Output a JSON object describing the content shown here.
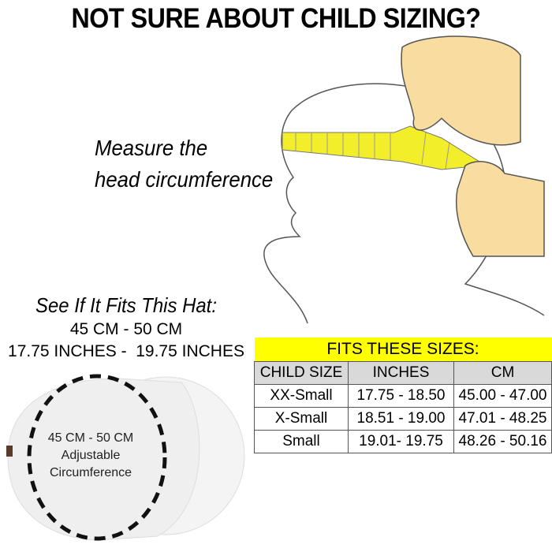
{
  "title": "NOT SURE ABOUT CHILD SIZING?",
  "instruction": [
    "Measure the",
    "head circumference"
  ],
  "fit_heading": "See If It Fits This Hat:",
  "cm_range": "45 CM - 50 CM",
  "inch_range": "17.75 INCHES -  19.75 INCHES",
  "cap_label": [
    "45 CM - 50 CM",
    "Adjustable",
    "Circumference"
  ],
  "table": {
    "header": "FITS THESE SIZES:",
    "columns": [
      "CHILD SIZE",
      "INCHES",
      "CM"
    ],
    "rows": [
      [
        "XX-Small",
        "17.75 - 18.50",
        "45.00 - 47.00"
      ],
      [
        "X-Small",
        "18.51 - 19.00",
        "47.01 - 48.25"
      ],
      [
        "Small",
        "19.01- 19.75",
        "48.26 - 50.16"
      ]
    ],
    "header_color": "#ffff00"
  },
  "tape_color": "#f2ee2a",
  "hand_color": "#f9dca0"
}
